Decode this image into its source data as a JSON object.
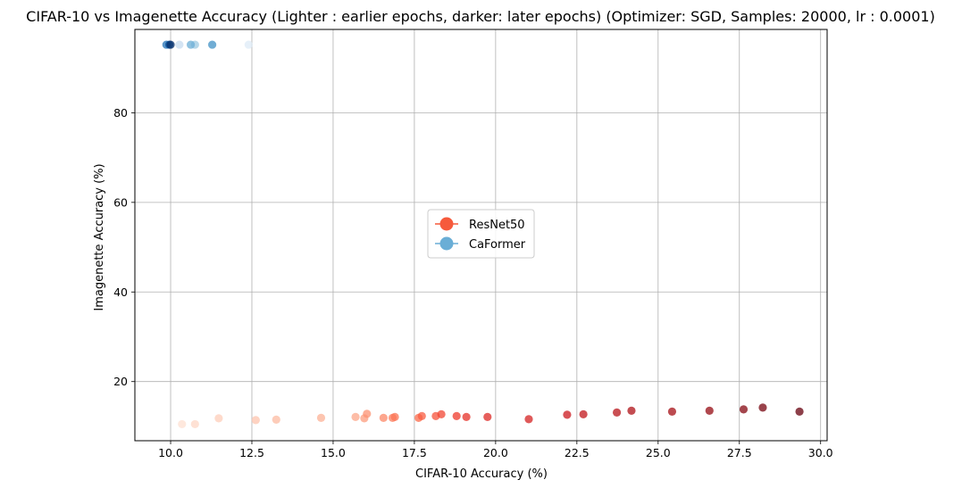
{
  "chart_data": {
    "type": "scatter",
    "title": "CIFAR-10 vs Imagenette Accuracy (Lighter : earlier epochs, darker: later epochs) (Optimizer: SGD, Samples: 20000, lr : 0.0001)",
    "xlabel": "CIFAR-10 Accuracy (%)",
    "ylabel": "Imagenette Accuracy (%)",
    "xlim": [
      8.9,
      30.2
    ],
    "ylim": [
      6.8,
      98.6
    ],
    "xticks": [
      "10.0",
      "12.5",
      "15.0",
      "17.5",
      "20.0",
      "22.5",
      "25.0",
      "27.5",
      "30.0"
    ],
    "yticks": [
      "20",
      "40",
      "60",
      "80"
    ],
    "grid": true,
    "legend_position": "center",
    "series": [
      {
        "name": "ResNet50",
        "color": "#f65a3c",
        "colormap": "Reds",
        "points": [
          {
            "x": 10.35,
            "y": 10.5
          },
          {
            "x": 10.75,
            "y": 10.5
          },
          {
            "x": 11.48,
            "y": 11.8
          },
          {
            "x": 12.62,
            "y": 11.4
          },
          {
            "x": 13.25,
            "y": 11.5
          },
          {
            "x": 14.63,
            "y": 11.9
          },
          {
            "x": 15.69,
            "y": 12.1
          },
          {
            "x": 15.96,
            "y": 11.8
          },
          {
            "x": 16.04,
            "y": 12.8
          },
          {
            "x": 16.55,
            "y": 11.9
          },
          {
            "x": 16.83,
            "y": 11.9
          },
          {
            "x": 16.9,
            "y": 12.1
          },
          {
            "x": 17.63,
            "y": 11.9
          },
          {
            "x": 17.73,
            "y": 12.3
          },
          {
            "x": 18.16,
            "y": 12.3
          },
          {
            "x": 18.33,
            "y": 12.7
          },
          {
            "x": 18.8,
            "y": 12.3
          },
          {
            "x": 19.1,
            "y": 12.1
          },
          {
            "x": 19.75,
            "y": 12.1
          },
          {
            "x": 21.02,
            "y": 11.6
          },
          {
            "x": 22.2,
            "y": 12.6
          },
          {
            "x": 22.7,
            "y": 12.7
          },
          {
            "x": 23.73,
            "y": 13.1
          },
          {
            "x": 24.18,
            "y": 13.5
          },
          {
            "x": 25.43,
            "y": 13.3
          },
          {
            "x": 26.58,
            "y": 13.5
          },
          {
            "x": 27.63,
            "y": 13.8
          },
          {
            "x": 28.22,
            "y": 14.2
          },
          {
            "x": 29.35,
            "y": 13.3
          }
        ]
      },
      {
        "name": "CaFormer",
        "color": "#6aaed6",
        "colormap": "Blues",
        "points": [
          {
            "x": 12.4,
            "y": 95.2
          },
          {
            "x": 10.27,
            "y": 95.2
          },
          {
            "x": 10.75,
            "y": 95.2
          },
          {
            "x": 10.62,
            "y": 95.2
          },
          {
            "x": 11.28,
            "y": 95.2
          },
          {
            "x": 9.87,
            "y": 95.2
          },
          {
            "x": 9.96,
            "y": 95.2
          },
          {
            "x": 10.0,
            "y": 95.2
          }
        ]
      }
    ]
  }
}
